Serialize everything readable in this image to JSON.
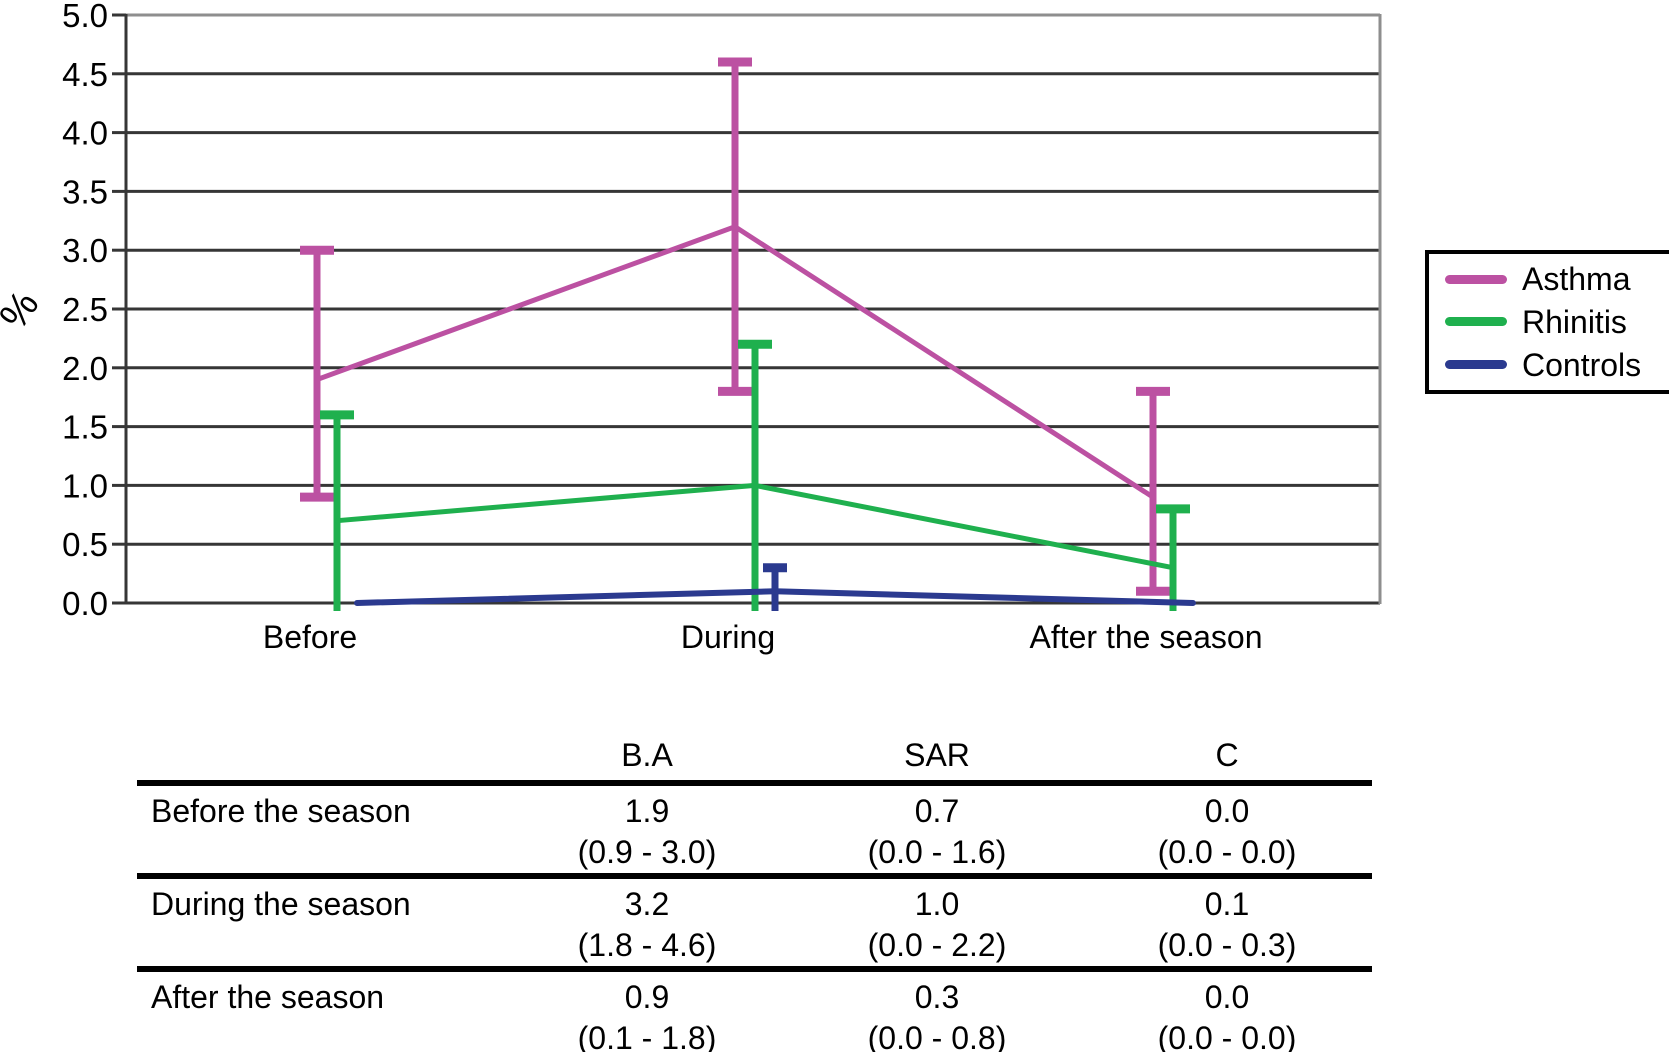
{
  "chart_data": {
    "type": "line",
    "title": "",
    "xlabel": "",
    "ylabel": "%",
    "ylim": [
      0.0,
      5.0
    ],
    "ytick_step": 0.5,
    "grid": true,
    "legend_position": "right",
    "categories": [
      "Before",
      "During",
      "After the season"
    ],
    "series": [
      {
        "name": "Asthma",
        "color": "#bc51a2",
        "values": [
          1.9,
          3.2,
          0.9
        ],
        "ci_low": [
          0.9,
          1.8,
          0.1
        ],
        "ci_high": [
          3.0,
          4.6,
          1.8
        ]
      },
      {
        "name": "Rhinitis",
        "color": "#1fb04e",
        "values": [
          0.7,
          1.0,
          0.3
        ],
        "ci_low": [
          0.0,
          0.0,
          0.0
        ],
        "ci_high": [
          1.6,
          2.2,
          0.8
        ]
      },
      {
        "name": "Controls",
        "color": "#2b3a8f",
        "values": [
          0.0,
          0.1,
          0.0
        ],
        "ci_low": [
          0.0,
          0.0,
          0.0
        ],
        "ci_high": [
          0.0,
          0.3,
          0.0
        ]
      }
    ]
  },
  "table": {
    "col_headers": [
      "B.A",
      "SAR",
      "C"
    ],
    "rows": [
      {
        "label": "Before the season",
        "values": [
          "1.9",
          "0.7",
          "0.0"
        ],
        "ci": [
          "(0.9 - 3.0)",
          "(0.0 - 1.6)",
          "(0.0 - 0.0)"
        ]
      },
      {
        "label": "During the season",
        "values": [
          "3.2",
          "1.0",
          "0.1"
        ],
        "ci": [
          "(1.8 - 4.6)",
          "(0.0 - 2.2)",
          "(0.0 - 0.3)"
        ]
      },
      {
        "label": "After the season",
        "values": [
          "0.9",
          "0.3",
          "0.0"
        ],
        "ci": [
          "(0.1 - 1.8)",
          "(0.0 - 0.8)",
          "(0.0 - 0.0)"
        ]
      }
    ]
  }
}
